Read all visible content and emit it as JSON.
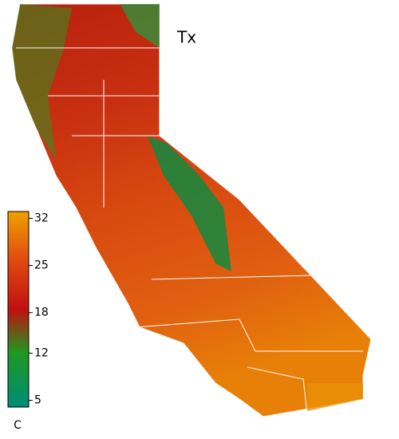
{
  "map": {
    "title": "Tx",
    "colorbar": {
      "ticks": [
        32,
        25,
        18,
        12,
        5
      ],
      "lim": [
        4,
        33
      ],
      "unit": "C"
    }
  }
}
